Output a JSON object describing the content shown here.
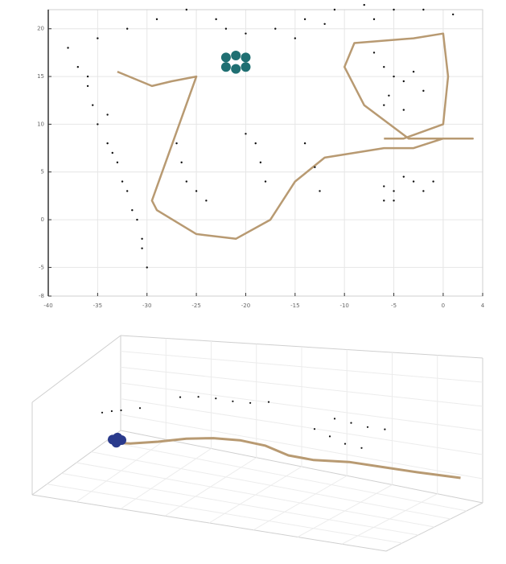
{
  "chart_data": [
    {
      "type": "scatter",
      "view": "2d-top",
      "title": "",
      "xlabel": "",
      "ylabel": "",
      "grid": true,
      "legend": "none",
      "xlim": [
        -40,
        4
      ],
      "ylim": [
        -8,
        22
      ],
      "xticks": [
        -40,
        -35,
        -30,
        -25,
        -20,
        -15,
        -10,
        -5,
        0,
        4
      ],
      "yticks": [
        -8,
        -5,
        0,
        5,
        10,
        15,
        20
      ],
      "colors": {
        "trajectory": "#b89a72",
        "landmarks": "#111111",
        "vehicle": "#1f6f72"
      },
      "series": [
        {
          "kind": "trajectory",
          "values": [
            [
              -33,
              15.5
            ],
            [
              -29.5,
              14
            ],
            [
              -27.5,
              14.5
            ],
            [
              -25,
              15
            ],
            [
              -29.5,
              2
            ],
            [
              -29,
              1
            ],
            [
              -25,
              -1.5
            ],
            [
              -21,
              -2
            ],
            [
              -17.5,
              0
            ],
            [
              -15,
              4
            ],
            [
              -12,
              6.5
            ],
            [
              -9,
              7
            ],
            [
              -6,
              7.5
            ],
            [
              -3,
              7.5
            ],
            [
              0,
              8.5
            ],
            [
              3,
              8.5
            ],
            [
              -3.5,
              8.5
            ],
            [
              -8,
              12
            ],
            [
              -10,
              16
            ],
            [
              -9,
              18.5
            ],
            [
              -3,
              19
            ],
            [
              0,
              19.5
            ],
            [
              0.5,
              15
            ],
            [
              0,
              10
            ],
            [
              -4,
              8.5
            ],
            [
              -6,
              8.5
            ]
          ]
        },
        {
          "kind": "landmarks",
          "values": [
            [
              -38,
              18
            ],
            [
              -37,
              16
            ],
            [
              -36,
              14
            ],
            [
              -35.5,
              12
            ],
            [
              -35,
              10
            ],
            [
              -34,
              8
            ],
            [
              -33,
              6
            ],
            [
              -32,
              3
            ],
            [
              -31,
              0
            ],
            [
              -30.5,
              -3
            ],
            [
              -30,
              -5
            ],
            [
              -36,
              15
            ],
            [
              -34,
              11
            ],
            [
              -33.5,
              7
            ],
            [
              -32.5,
              4
            ],
            [
              -31.5,
              1
            ],
            [
              -30.5,
              -2
            ],
            [
              -35,
              19
            ],
            [
              -32,
              20
            ],
            [
              -29,
              21
            ],
            [
              -26,
              22
            ],
            [
              -23,
              21
            ],
            [
              -22,
              20
            ],
            [
              -20,
              19.5
            ],
            [
              -17,
              20
            ],
            [
              -14,
              21
            ],
            [
              -11,
              22
            ],
            [
              -8,
              22.5
            ],
            [
              -5,
              22
            ],
            [
              -2,
              22
            ],
            [
              1,
              21.5
            ],
            [
              -15,
              19
            ],
            [
              -12,
              20.5
            ],
            [
              -7,
              21
            ],
            [
              -27,
              8
            ],
            [
              -26.5,
              6
            ],
            [
              -26,
              4
            ],
            [
              -25,
              3
            ],
            [
              -24,
              2
            ],
            [
              -20,
              9
            ],
            [
              -19,
              8
            ],
            [
              -18.5,
              6
            ],
            [
              -18,
              4
            ],
            [
              -14,
              8
            ],
            [
              -13,
              5.5
            ],
            [
              -12.5,
              3
            ],
            [
              -6,
              2
            ],
            [
              -5,
              3
            ],
            [
              -4,
              4.5
            ],
            [
              -3,
              4
            ],
            [
              -2,
              3
            ],
            [
              -5,
              2
            ],
            [
              -6,
              3.5
            ],
            [
              -1,
              4
            ],
            [
              -7,
              17.5
            ],
            [
              -6,
              16
            ],
            [
              -5,
              15
            ],
            [
              -4,
              14.5
            ],
            [
              -3,
              15.5
            ],
            [
              -5.5,
              13
            ],
            [
              -2,
              13.5
            ],
            [
              -6,
              12
            ],
            [
              -4,
              11.5
            ]
          ]
        },
        {
          "kind": "vehicle",
          "values": [
            [
              -22,
              17
            ],
            [
              -21,
              17.2
            ],
            [
              -20,
              17
            ],
            [
              -22,
              16
            ],
            [
              -21,
              15.8
            ],
            [
              -20,
              16
            ]
          ]
        }
      ]
    },
    {
      "type": "scatter",
      "view": "3d-perspective",
      "title": "",
      "xlabel": "",
      "ylabel": "",
      "zlabel": "",
      "grid": true,
      "legend": "none",
      "colors": {
        "trajectory": "#b89a72",
        "landmarks": "#111111",
        "vehicle": "#2a3a8c"
      },
      "series": [
        {
          "kind": "trajectory",
          "values": [
            [
              0,
              0,
              0
            ],
            [
              2,
              0,
              0
            ],
            [
              5,
              0.5,
              0
            ],
            [
              8,
              1.2,
              0
            ],
            [
              11,
              1.5,
              0
            ],
            [
              14,
              1.4,
              0
            ],
            [
              17,
              0.8,
              0
            ],
            [
              20,
              -0.5,
              0
            ],
            [
              23,
              -1,
              0
            ],
            [
              27,
              -1,
              0
            ],
            [
              31,
              -1.5,
              0
            ],
            [
              35,
              -2,
              0
            ],
            [
              40,
              -2.5,
              0
            ]
          ]
        },
        {
          "kind": "landmarks",
          "values": [
            [
              -2,
              3,
              1
            ],
            [
              -1,
              3.3,
              1
            ],
            [
              0,
              3.5,
              1
            ],
            [
              2,
              4,
              1
            ],
            [
              6,
              6,
              1
            ],
            [
              8,
              6.2,
              1
            ],
            [
              10,
              6.1,
              1
            ],
            [
              12,
              5.8,
              1
            ],
            [
              14,
              5.7,
              1
            ],
            [
              16,
              6,
              1
            ],
            [
              24,
              4,
              1
            ],
            [
              26,
              3.5,
              1
            ],
            [
              28,
              3,
              1
            ],
            [
              30,
              2.8,
              1
            ],
            [
              22,
              3,
              0.5
            ],
            [
              24,
              2,
              0.5
            ],
            [
              26,
              1,
              0.5
            ],
            [
              28,
              0.5,
              0.5
            ]
          ]
        },
        {
          "kind": "vehicle",
          "values": [
            [
              0,
              0,
              0.3
            ],
            [
              0.5,
              0.2,
              0.4
            ],
            [
              1,
              0,
              0.3
            ],
            [
              0.5,
              -0.3,
              0.2
            ]
          ]
        }
      ]
    }
  ]
}
